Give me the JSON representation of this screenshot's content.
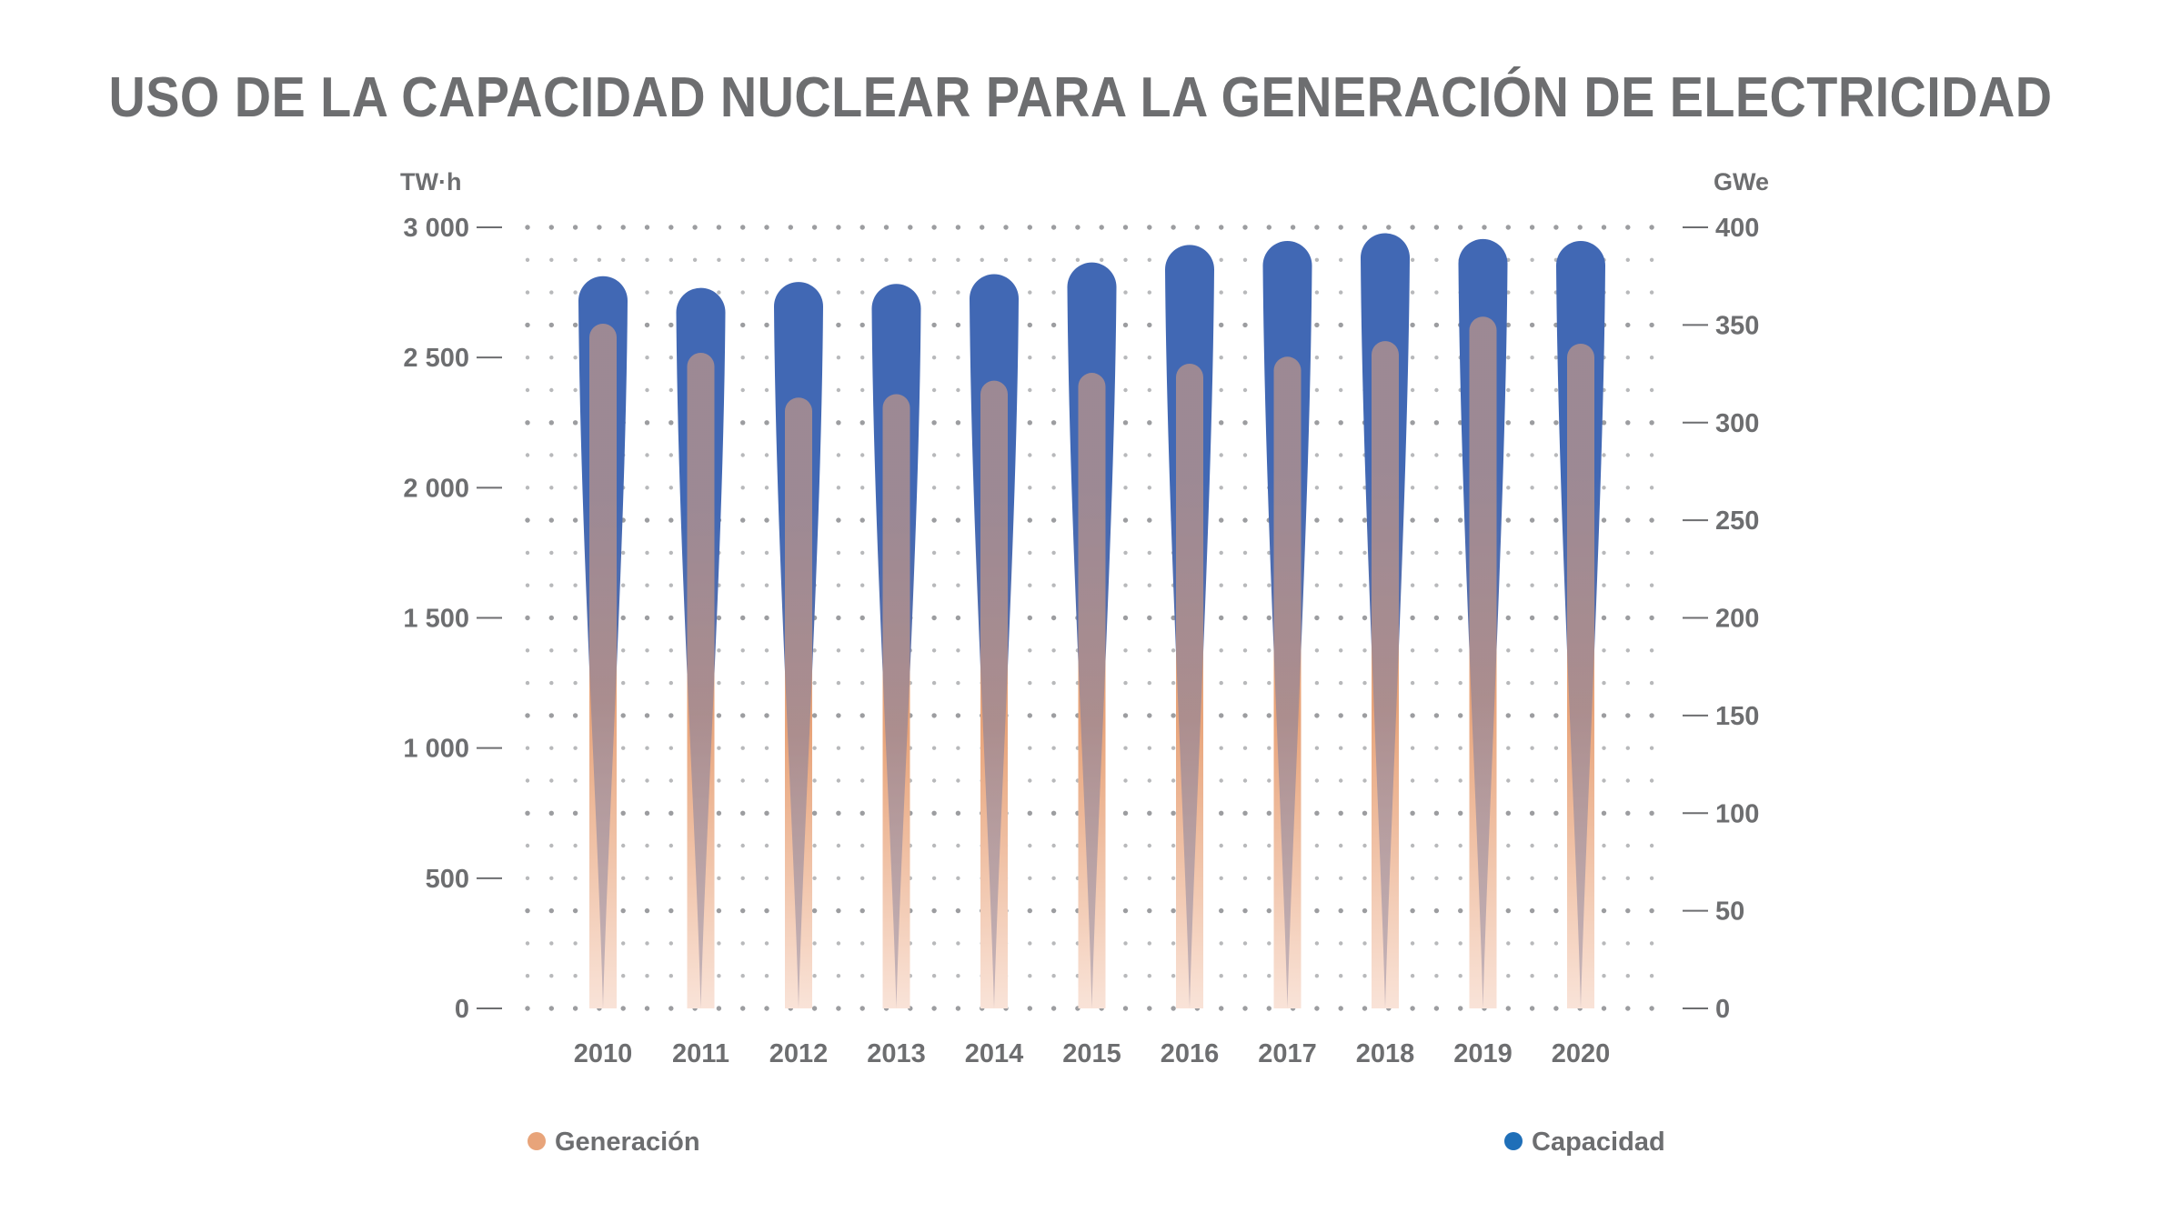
{
  "colors": {
    "generation": "#e8a47a",
    "capacity": "#4168b4",
    "capacity_legend": "#1f6fb8",
    "text": "#6d6e70",
    "dots": "#b8b9bb"
  },
  "chart_data": {
    "type": "bar",
    "title": "USO DE LA CAPACIDAD NUCLEAR PARA LA GENERACIÓN DE ELECTRICIDAD",
    "categories": [
      "2010",
      "2011",
      "2012",
      "2013",
      "2014",
      "2015",
      "2016",
      "2017",
      "2018",
      "2019",
      "2020"
    ],
    "left_axis": {
      "unit": "TW·h",
      "ylim": [
        0,
        3000
      ],
      "ticks": [
        0,
        500,
        1000,
        1500,
        2000,
        2500,
        3000
      ],
      "tick_labels": [
        "0",
        "500",
        "1 000",
        "1 500",
        "2 000",
        "2 500",
        "3 000"
      ]
    },
    "right_axis": {
      "unit": "GWe",
      "ylim": [
        0,
        400
      ],
      "ticks": [
        0,
        50,
        100,
        150,
        200,
        250,
        300,
        350,
        400
      ],
      "tick_labels": [
        "0",
        "50",
        "100",
        "150",
        "200",
        "250",
        "300",
        "350",
        "400"
      ]
    },
    "series": [
      {
        "name": "Generación",
        "axis": "left",
        "values": [
          2630,
          2518,
          2346,
          2359,
          2411,
          2441,
          2476,
          2503,
          2563,
          2657,
          2553
        ]
      },
      {
        "name": "Capacidad",
        "axis": "right",
        "values": [
          375,
          369,
          372,
          371,
          376,
          382,
          391,
          393,
          397,
          394,
          393
        ]
      }
    ],
    "grid": "dotted",
    "legend": "bottom"
  }
}
